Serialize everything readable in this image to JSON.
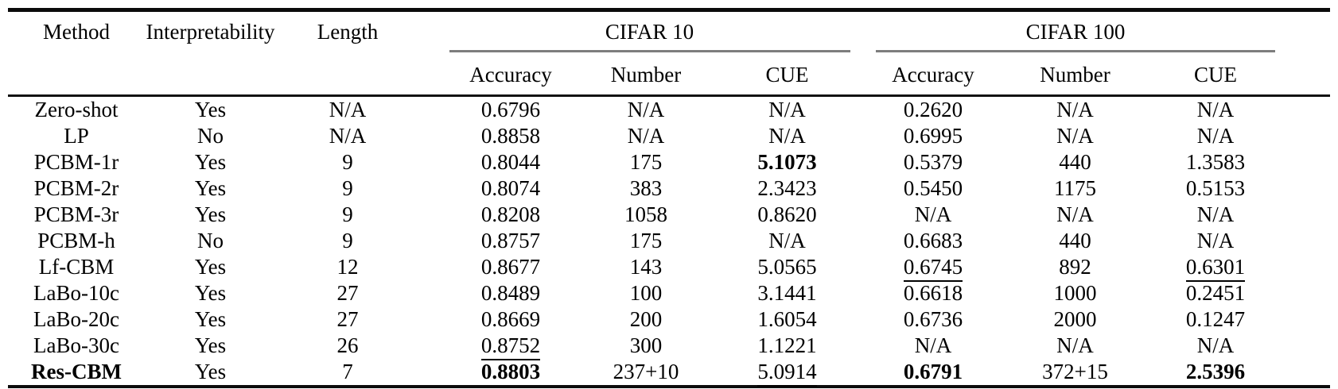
{
  "colors": {
    "background": "#ffffff",
    "text": "#000000",
    "heavy_rule": "#0b0b0b",
    "group_rule_gray": "#7d7d7d"
  },
  "table": {
    "header": {
      "method": "Method",
      "interpretability": "Interpretability",
      "length": "Length",
      "group1": "CIFAR 10",
      "group2": "CIFAR 100",
      "sub": [
        "Accuracy",
        "Number",
        "CUE"
      ]
    },
    "rows": [
      {
        "cells": [
          {
            "text": "Zero-shot"
          },
          {
            "text": "Yes"
          },
          {
            "text": "N/A"
          },
          {
            "text": "0.6796"
          },
          {
            "text": "N/A"
          },
          {
            "text": "N/A"
          },
          {
            "text": "0.2620"
          },
          {
            "text": "N/A"
          },
          {
            "text": "N/A"
          }
        ]
      },
      {
        "cells": [
          {
            "text": "LP"
          },
          {
            "text": "No"
          },
          {
            "text": "N/A"
          },
          {
            "text": "0.8858"
          },
          {
            "text": "N/A"
          },
          {
            "text": "N/A"
          },
          {
            "text": "0.6995"
          },
          {
            "text": "N/A"
          },
          {
            "text": "N/A"
          }
        ]
      },
      {
        "cells": [
          {
            "text": "PCBM-1r"
          },
          {
            "text": "Yes"
          },
          {
            "text": "9"
          },
          {
            "text": "0.8044"
          },
          {
            "text": "175"
          },
          {
            "text": "5.1073",
            "bold": true
          },
          {
            "text": "0.5379"
          },
          {
            "text": "440"
          },
          {
            "text": "1.3583"
          }
        ]
      },
      {
        "cells": [
          {
            "text": "PCBM-2r"
          },
          {
            "text": "Yes"
          },
          {
            "text": "9"
          },
          {
            "text": "0.8074"
          },
          {
            "text": "383"
          },
          {
            "text": "2.3423"
          },
          {
            "text": "0.5450"
          },
          {
            "text": "1175"
          },
          {
            "text": "0.5153"
          }
        ]
      },
      {
        "cells": [
          {
            "text": "PCBM-3r"
          },
          {
            "text": "Yes"
          },
          {
            "text": "9"
          },
          {
            "text": "0.8208"
          },
          {
            "text": "1058"
          },
          {
            "text": "0.8620"
          },
          {
            "text": "N/A"
          },
          {
            "text": "N/A"
          },
          {
            "text": "N/A"
          }
        ]
      },
      {
        "cells": [
          {
            "text": "PCBM-h"
          },
          {
            "text": "No"
          },
          {
            "text": "9"
          },
          {
            "text": "0.8757"
          },
          {
            "text": "175"
          },
          {
            "text": "N/A"
          },
          {
            "text": "0.6683"
          },
          {
            "text": "440"
          },
          {
            "text": "N/A"
          }
        ]
      },
      {
        "cells": [
          {
            "text": "Lf-CBM"
          },
          {
            "text": "Yes"
          },
          {
            "text": "12"
          },
          {
            "text": "0.8677"
          },
          {
            "text": "143"
          },
          {
            "text": "5.0565"
          },
          {
            "text": "0.6745",
            "underline": true
          },
          {
            "text": "892"
          },
          {
            "text": "0.6301",
            "underline": true
          }
        ]
      },
      {
        "cells": [
          {
            "text": "LaBo-10c"
          },
          {
            "text": "Yes"
          },
          {
            "text": "27"
          },
          {
            "text": "0.8489"
          },
          {
            "text": "100"
          },
          {
            "text": "3.1441"
          },
          {
            "text": "0.6618"
          },
          {
            "text": "1000"
          },
          {
            "text": "0.2451"
          }
        ]
      },
      {
        "cells": [
          {
            "text": "LaBo-20c"
          },
          {
            "text": "Yes"
          },
          {
            "text": "27"
          },
          {
            "text": "0.8669"
          },
          {
            "text": "200"
          },
          {
            "text": "1.6054"
          },
          {
            "text": "0.6736"
          },
          {
            "text": "2000"
          },
          {
            "text": "0.1247"
          }
        ]
      },
      {
        "cells": [
          {
            "text": "LaBo-30c"
          },
          {
            "text": "Yes"
          },
          {
            "text": "26"
          },
          {
            "text": "0.8752",
            "underline": true
          },
          {
            "text": "300"
          },
          {
            "text": "1.1221"
          },
          {
            "text": "N/A"
          },
          {
            "text": "N/A"
          },
          {
            "text": "N/A"
          }
        ]
      },
      {
        "cells": [
          {
            "text": "Res-CBM",
            "bold": true
          },
          {
            "text": "Yes"
          },
          {
            "text": "7"
          },
          {
            "text": "0.8803",
            "bold": true
          },
          {
            "text": "237+10"
          },
          {
            "text": "5.0914",
            "underline": true
          },
          {
            "text": "0.6791",
            "bold": true
          },
          {
            "text": "372+15"
          },
          {
            "text": "2.5396",
            "bold": true
          }
        ]
      }
    ]
  }
}
